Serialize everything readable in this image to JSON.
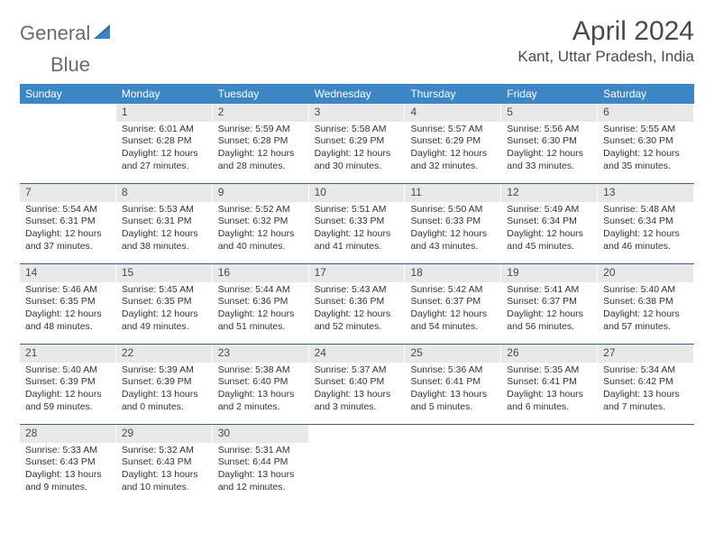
{
  "logo": {
    "text1": "General",
    "text2": "Blue"
  },
  "title": "April 2024",
  "location": "Kant, Uttar Pradesh, India",
  "colors": {
    "header_bar": "#3d86c6",
    "header_text": "#ffffff",
    "daynum_bg": "#e8e8e8",
    "text": "#333333",
    "logo_gray": "#6b6b6b",
    "logo_blue": "#2f6fa8",
    "divider": "#3d5f7a"
  },
  "typography": {
    "title_fontsize": 30,
    "location_fontsize": 17,
    "dow_fontsize": 12,
    "daynum_fontsize": 12,
    "body_fontsize": 10.5
  },
  "layout": {
    "columns": 7,
    "rows": 5,
    "cell_min_height": 88
  },
  "days_of_week": [
    "Sunday",
    "Monday",
    "Tuesday",
    "Wednesday",
    "Thursday",
    "Friday",
    "Saturday"
  ],
  "weeks": [
    [
      {
        "n": "",
        "lines": []
      },
      {
        "n": "1",
        "lines": [
          "Sunrise: 6:01 AM",
          "Sunset: 6:28 PM",
          "Daylight: 12 hours and 27 minutes."
        ]
      },
      {
        "n": "2",
        "lines": [
          "Sunrise: 5:59 AM",
          "Sunset: 6:28 PM",
          "Daylight: 12 hours and 28 minutes."
        ]
      },
      {
        "n": "3",
        "lines": [
          "Sunrise: 5:58 AM",
          "Sunset: 6:29 PM",
          "Daylight: 12 hours and 30 minutes."
        ]
      },
      {
        "n": "4",
        "lines": [
          "Sunrise: 5:57 AM",
          "Sunset: 6:29 PM",
          "Daylight: 12 hours and 32 minutes."
        ]
      },
      {
        "n": "5",
        "lines": [
          "Sunrise: 5:56 AM",
          "Sunset: 6:30 PM",
          "Daylight: 12 hours and 33 minutes."
        ]
      },
      {
        "n": "6",
        "lines": [
          "Sunrise: 5:55 AM",
          "Sunset: 6:30 PM",
          "Daylight: 12 hours and 35 minutes."
        ]
      }
    ],
    [
      {
        "n": "7",
        "lines": [
          "Sunrise: 5:54 AM",
          "Sunset: 6:31 PM",
          "Daylight: 12 hours and 37 minutes."
        ]
      },
      {
        "n": "8",
        "lines": [
          "Sunrise: 5:53 AM",
          "Sunset: 6:31 PM",
          "Daylight: 12 hours and 38 minutes."
        ]
      },
      {
        "n": "9",
        "lines": [
          "Sunrise: 5:52 AM",
          "Sunset: 6:32 PM",
          "Daylight: 12 hours and 40 minutes."
        ]
      },
      {
        "n": "10",
        "lines": [
          "Sunrise: 5:51 AM",
          "Sunset: 6:33 PM",
          "Daylight: 12 hours and 41 minutes."
        ]
      },
      {
        "n": "11",
        "lines": [
          "Sunrise: 5:50 AM",
          "Sunset: 6:33 PM",
          "Daylight: 12 hours and 43 minutes."
        ]
      },
      {
        "n": "12",
        "lines": [
          "Sunrise: 5:49 AM",
          "Sunset: 6:34 PM",
          "Daylight: 12 hours and 45 minutes."
        ]
      },
      {
        "n": "13",
        "lines": [
          "Sunrise: 5:48 AM",
          "Sunset: 6:34 PM",
          "Daylight: 12 hours and 46 minutes."
        ]
      }
    ],
    [
      {
        "n": "14",
        "lines": [
          "Sunrise: 5:46 AM",
          "Sunset: 6:35 PM",
          "Daylight: 12 hours and 48 minutes."
        ]
      },
      {
        "n": "15",
        "lines": [
          "Sunrise: 5:45 AM",
          "Sunset: 6:35 PM",
          "Daylight: 12 hours and 49 minutes."
        ]
      },
      {
        "n": "16",
        "lines": [
          "Sunrise: 5:44 AM",
          "Sunset: 6:36 PM",
          "Daylight: 12 hours and 51 minutes."
        ]
      },
      {
        "n": "17",
        "lines": [
          "Sunrise: 5:43 AM",
          "Sunset: 6:36 PM",
          "Daylight: 12 hours and 52 minutes."
        ]
      },
      {
        "n": "18",
        "lines": [
          "Sunrise: 5:42 AM",
          "Sunset: 6:37 PM",
          "Daylight: 12 hours and 54 minutes."
        ]
      },
      {
        "n": "19",
        "lines": [
          "Sunrise: 5:41 AM",
          "Sunset: 6:37 PM",
          "Daylight: 12 hours and 56 minutes."
        ]
      },
      {
        "n": "20",
        "lines": [
          "Sunrise: 5:40 AM",
          "Sunset: 6:38 PM",
          "Daylight: 12 hours and 57 minutes."
        ]
      }
    ],
    [
      {
        "n": "21",
        "lines": [
          "Sunrise: 5:40 AM",
          "Sunset: 6:39 PM",
          "Daylight: 12 hours and 59 minutes."
        ]
      },
      {
        "n": "22",
        "lines": [
          "Sunrise: 5:39 AM",
          "Sunset: 6:39 PM",
          "Daylight: 13 hours and 0 minutes."
        ]
      },
      {
        "n": "23",
        "lines": [
          "Sunrise: 5:38 AM",
          "Sunset: 6:40 PM",
          "Daylight: 13 hours and 2 minutes."
        ]
      },
      {
        "n": "24",
        "lines": [
          "Sunrise: 5:37 AM",
          "Sunset: 6:40 PM",
          "Daylight: 13 hours and 3 minutes."
        ]
      },
      {
        "n": "25",
        "lines": [
          "Sunrise: 5:36 AM",
          "Sunset: 6:41 PM",
          "Daylight: 13 hours and 5 minutes."
        ]
      },
      {
        "n": "26",
        "lines": [
          "Sunrise: 5:35 AM",
          "Sunset: 6:41 PM",
          "Daylight: 13 hours and 6 minutes."
        ]
      },
      {
        "n": "27",
        "lines": [
          "Sunrise: 5:34 AM",
          "Sunset: 6:42 PM",
          "Daylight: 13 hours and 7 minutes."
        ]
      }
    ],
    [
      {
        "n": "28",
        "lines": [
          "Sunrise: 5:33 AM",
          "Sunset: 6:43 PM",
          "Daylight: 13 hours and 9 minutes."
        ]
      },
      {
        "n": "29",
        "lines": [
          "Sunrise: 5:32 AM",
          "Sunset: 6:43 PM",
          "Daylight: 13 hours and 10 minutes."
        ]
      },
      {
        "n": "30",
        "lines": [
          "Sunrise: 5:31 AM",
          "Sunset: 6:44 PM",
          "Daylight: 13 hours and 12 minutes."
        ]
      },
      {
        "n": "",
        "lines": []
      },
      {
        "n": "",
        "lines": []
      },
      {
        "n": "",
        "lines": []
      },
      {
        "n": "",
        "lines": []
      }
    ]
  ]
}
